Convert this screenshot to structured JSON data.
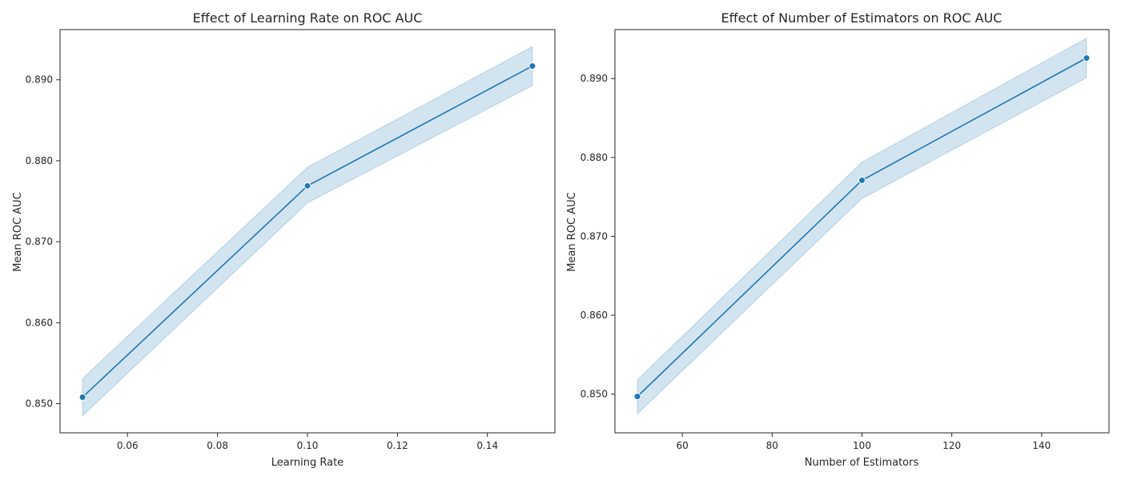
{
  "chart_data": [
    {
      "type": "line",
      "title": "Effect of Learning Rate on ROC AUC",
      "xlabel": "Learning Rate",
      "ylabel": "Mean ROC AUC",
      "xlim": [
        0.045,
        0.155
      ],
      "ylim": [
        0.8464,
        0.8962
      ],
      "xticks": [
        0.06,
        0.08,
        0.1,
        0.12,
        0.14
      ],
      "xtick_labels": [
        "0.06",
        "0.08",
        "0.10",
        "0.12",
        "0.14"
      ],
      "yticks": [
        0.85,
        0.86,
        0.87,
        0.88,
        0.89
      ],
      "ytick_labels": [
        "0.850",
        "0.860",
        "0.870",
        "0.880",
        "0.890"
      ],
      "grid": false,
      "series": [
        {
          "x": [
            0.05,
            0.1,
            0.15
          ],
          "y": [
            0.8508,
            0.8769,
            0.8917
          ],
          "ci_lower": [
            0.8485,
            0.8748,
            0.8893
          ],
          "ci_upper": [
            0.8531,
            0.8792,
            0.8941
          ],
          "color": "#1f77b4"
        }
      ]
    },
    {
      "type": "line",
      "title": "Effect of Number of Estimators on ROC AUC",
      "xlabel": "Number of Estimators",
      "ylabel": "Mean ROC AUC",
      "xlim": [
        45,
        155
      ],
      "ylim": [
        0.8451,
        0.8962
      ],
      "xticks": [
        60,
        80,
        100,
        120,
        140
      ],
      "xtick_labels": [
        "60",
        "80",
        "100",
        "120",
        "140"
      ],
      "yticks": [
        0.85,
        0.86,
        0.87,
        0.88,
        0.89
      ],
      "ytick_labels": [
        "0.850",
        "0.860",
        "0.870",
        "0.880",
        "0.890"
      ],
      "grid": false,
      "series": [
        {
          "x": [
            50,
            100,
            150
          ],
          "y": [
            0.8497,
            0.8771,
            0.8926
          ],
          "ci_lower": [
            0.8475,
            0.8748,
            0.8901
          ],
          "ci_upper": [
            0.8518,
            0.8794,
            0.8951
          ],
          "color": "#1f77b4"
        }
      ]
    }
  ]
}
